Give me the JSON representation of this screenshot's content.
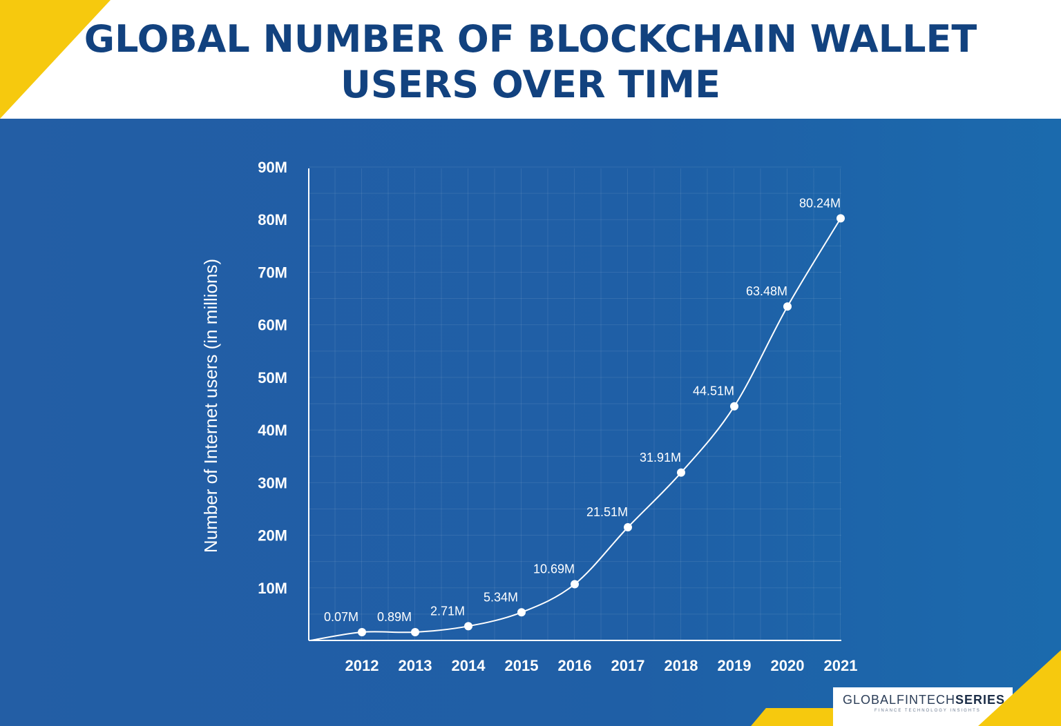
{
  "header": {
    "title_line1": "GLOBAL NUMBER OF BLOCKCHAIN WALLET",
    "title_line2": "USERS OVER TIME"
  },
  "chart_data": {
    "type": "line",
    "title": "GLOBAL NUMBER OF BLOCKCHAIN WALLET USERS OVER TIME",
    "xlabel": "",
    "ylabel": "Number of Internet users (in millions)",
    "categories": [
      "2012",
      "2013",
      "2014",
      "2015",
      "2016",
      "2017",
      "2018",
      "2019",
      "2020",
      "2021"
    ],
    "values": [
      0.07,
      0.89,
      2.71,
      5.34,
      10.69,
      21.51,
      31.91,
      44.51,
      63.48,
      80.24
    ],
    "data_labels": [
      "0.07M",
      "0.89M",
      "2.71M",
      "5.34M",
      "10.69M",
      "21.51M",
      "31.91M",
      "44.51M",
      "63.48M",
      "80.24M"
    ],
    "y_ticks": [
      "10M",
      "20M",
      "30M",
      "40M",
      "50M",
      "60M",
      "70M",
      "80M",
      "90M"
    ],
    "y_tick_values": [
      10,
      20,
      30,
      40,
      50,
      60,
      70,
      80,
      90
    ],
    "ylim": [
      0,
      90
    ],
    "grid": true,
    "legend": "none",
    "colors": {
      "line": "#ffffff",
      "background": "#2060a6",
      "title": "#12427f",
      "accent": "#f6c90e"
    }
  },
  "logo": {
    "brand_prefix": "GLOBALFINTECH",
    "brand_suffix": "SERIES",
    "tagline": "FINANCE TECHNOLOGY INSIGHTS"
  }
}
